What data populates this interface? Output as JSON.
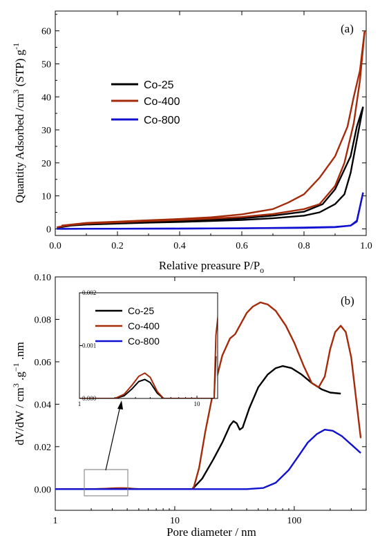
{
  "chart_data": [
    {
      "type": "line",
      "panel_label": "(a)",
      "xlabel_main": "Relative preasure P/P",
      "xlabel_sub": "o",
      "ylabel_main": "Quantity Adsorbed /cm",
      "ylabel_sup": "3",
      "ylabel_tail": " (STP) g",
      "ylabel_sup2": "-1",
      "xlim": [
        0,
        1
      ],
      "ylim": [
        -2,
        66
      ],
      "x_ticks": [
        "0.0",
        "0.2",
        "0.4",
        "0.6",
        "0.8",
        "1.0"
      ],
      "y_ticks": [
        "0",
        "10",
        "20",
        "30",
        "40",
        "50",
        "60"
      ],
      "legend_position": "middle-left",
      "series": [
        {
          "name": "Co-25",
          "color": "#000000",
          "adsorption": [
            [
              0.005,
              0.3
            ],
            [
              0.05,
              1.0
            ],
            [
              0.1,
              1.3
            ],
            [
              0.2,
              1.6
            ],
            [
              0.3,
              1.9
            ],
            [
              0.4,
              2.1
            ],
            [
              0.5,
              2.4
            ],
            [
              0.6,
              2.7
            ],
            [
              0.7,
              3.2
            ],
            [
              0.8,
              4.0
            ],
            [
              0.85,
              5.0
            ],
            [
              0.9,
              7.5
            ],
            [
              0.93,
              10.5
            ],
            [
              0.95,
              17.0
            ],
            [
              0.97,
              27.0
            ],
            [
              0.99,
              37.0
            ]
          ],
          "desorption": [
            [
              0.99,
              37.0
            ],
            [
              0.97,
              31.0
            ],
            [
              0.95,
              22.0
            ],
            [
              0.92,
              16.0
            ],
            [
              0.9,
              12.0
            ],
            [
              0.86,
              7.5
            ],
            [
              0.8,
              5.2
            ],
            [
              0.7,
              4.0
            ],
            [
              0.6,
              3.2
            ],
            [
              0.5,
              2.8
            ],
            [
              0.4,
              2.5
            ],
            [
              0.3,
              2.2
            ],
            [
              0.2,
              1.9
            ],
            [
              0.1,
              1.5
            ],
            [
              0.02,
              0.8
            ]
          ]
        },
        {
          "name": "Co-400",
          "color": "#a52a0a",
          "adsorption": [
            [
              0.005,
              0.5
            ],
            [
              0.05,
              1.2
            ],
            [
              0.1,
              1.6
            ],
            [
              0.2,
              2.0
            ],
            [
              0.3,
              2.4
            ],
            [
              0.4,
              2.7
            ],
            [
              0.5,
              3.1
            ],
            [
              0.6,
              3.6
            ],
            [
              0.7,
              4.5
            ],
            [
              0.8,
              6.0
            ],
            [
              0.85,
              7.5
            ],
            [
              0.9,
              13.0
            ],
            [
              0.93,
              20.0
            ],
            [
              0.96,
              32.0
            ],
            [
              0.98,
              45.0
            ],
            [
              0.995,
              60.0
            ]
          ],
          "desorption": [
            [
              0.995,
              60.0
            ],
            [
              0.98,
              48.0
            ],
            [
              0.96,
              40.0
            ],
            [
              0.94,
              31.0
            ],
            [
              0.9,
              22.0
            ],
            [
              0.85,
              15.5
            ],
            [
              0.8,
              10.5
            ],
            [
              0.75,
              8.0
            ],
            [
              0.7,
              6.0
            ],
            [
              0.6,
              4.4
            ],
            [
              0.5,
              3.5
            ],
            [
              0.4,
              3.0
            ],
            [
              0.3,
              2.6
            ],
            [
              0.2,
              2.2
            ],
            [
              0.1,
              1.8
            ],
            [
              0.02,
              1.0
            ]
          ]
        },
        {
          "name": "Co-800",
          "color": "#1010d0",
          "adsorption": [
            [
              0.005,
              0.0
            ],
            [
              0.2,
              0.05
            ],
            [
              0.4,
              0.1
            ],
            [
              0.6,
              0.15
            ],
            [
              0.8,
              0.3
            ],
            [
              0.9,
              0.5
            ],
            [
              0.95,
              1.0
            ],
            [
              0.97,
              2.5
            ],
            [
              0.99,
              11.0
            ]
          ],
          "desorption": [
            [
              0.99,
              11.0
            ],
            [
              0.97,
              2.2
            ],
            [
              0.95,
              1.0
            ],
            [
              0.9,
              0.6
            ],
            [
              0.8,
              0.4
            ],
            [
              0.6,
              0.2
            ],
            [
              0.4,
              0.1
            ],
            [
              0.2,
              0.05
            ],
            [
              0.02,
              0.0
            ]
          ]
        }
      ]
    },
    {
      "type": "line",
      "panel_label": "(b)",
      "xlabel": "Pore diameter / nm",
      "ylabel_main": "dV/dW / cm",
      "ylabel_sup": "3",
      "ylabel_mid": " .g",
      "ylabel_sup2": "−1",
      "ylabel_tail": " .nm",
      "x_scale": "log",
      "xlim": [
        1,
        400
      ],
      "ylim": [
        -0.01,
        0.1
      ],
      "x_ticks": [
        "1",
        "10",
        "100"
      ],
      "y_ticks": [
        "0.00",
        "0.02",
        "0.04",
        "0.06",
        "0.08",
        "0.10"
      ],
      "legend_position": "inset-top",
      "series": [
        {
          "name": "Co-25",
          "color": "#000000",
          "points": [
            [
              1,
              0
            ],
            [
              2,
              0
            ],
            [
              2.4,
              5e-05
            ],
            [
              2.8,
              0.00018
            ],
            [
              3.2,
              0.00032
            ],
            [
              3.6,
              0.00036
            ],
            [
              4.0,
              0.0003
            ],
            [
              4.6,
              0.0001
            ],
            [
              5.2,
              0
            ],
            [
              10,
              0
            ],
            [
              14,
              0
            ],
            [
              14.5,
              0.0008
            ],
            [
              17,
              0.005
            ],
            [
              21,
              0.014
            ],
            [
              25,
              0.022
            ],
            [
              29,
              0.03
            ],
            [
              31,
              0.032
            ],
            [
              33,
              0.031
            ],
            [
              35,
              0.028
            ],
            [
              37,
              0.029
            ],
            [
              42,
              0.038
            ],
            [
              50,
              0.048
            ],
            [
              60,
              0.054
            ],
            [
              70,
              0.057
            ],
            [
              80,
              0.058
            ],
            [
              95,
              0.057
            ],
            [
              115,
              0.054
            ],
            [
              140,
              0.05
            ],
            [
              170,
              0.047
            ],
            [
              200,
              0.0455
            ],
            [
              245,
              0.045
            ]
          ]
        },
        {
          "name": "Co-400",
          "color": "#a52a0a",
          "points": [
            [
              1,
              0
            ],
            [
              2,
              0
            ],
            [
              2.4,
              8e-05
            ],
            [
              2.8,
              0.00025
            ],
            [
              3.2,
              0.00042
            ],
            [
              3.6,
              0.00048
            ],
            [
              4.0,
              0.0004
            ],
            [
              4.6,
              0.00013
            ],
            [
              5.2,
              0
            ],
            [
              10,
              0
            ],
            [
              14,
              0
            ],
            [
              14.5,
              0.0012
            ],
            [
              16,
              0.01
            ],
            [
              18,
              0.027
            ],
            [
              21,
              0.046
            ],
            [
              25,
              0.063
            ],
            [
              29,
              0.071
            ],
            [
              32,
              0.073
            ],
            [
              35,
              0.077
            ],
            [
              40,
              0.083
            ],
            [
              45,
              0.086
            ],
            [
              52,
              0.088
            ],
            [
              60,
              0.087
            ],
            [
              70,
              0.084
            ],
            [
              85,
              0.077
            ],
            [
              100,
              0.069
            ],
            [
              120,
              0.058
            ],
            [
              140,
              0.05
            ],
            [
              160,
              0.048
            ],
            [
              180,
              0.053
            ],
            [
              200,
              0.066
            ],
            [
              220,
              0.074
            ],
            [
              245,
              0.077
            ],
            [
              270,
              0.074
            ],
            [
              300,
              0.062
            ],
            [
              330,
              0.042
            ],
            [
              360,
              0.024
            ]
          ]
        },
        {
          "name": "Co-800",
          "color": "#1010d0",
          "points": [
            [
              1,
              0
            ],
            [
              20,
              0
            ],
            [
              40,
              0
            ],
            [
              55,
              0.0005
            ],
            [
              70,
              0.003
            ],
            [
              90,
              0.009
            ],
            [
              110,
              0.016
            ],
            [
              130,
              0.022
            ],
            [
              155,
              0.026
            ],
            [
              180,
              0.028
            ],
            [
              210,
              0.0275
            ],
            [
              250,
              0.025
            ],
            [
              300,
              0.021
            ],
            [
              360,
              0.017
            ]
          ]
        }
      ],
      "inset": {
        "xlim": [
          1,
          15
        ],
        "ylim": [
          0,
          0.002
        ],
        "x_ticks": [
          "1",
          "10"
        ],
        "y_ticks": [
          "0.000",
          "0.001",
          "0.002"
        ]
      }
    }
  ]
}
